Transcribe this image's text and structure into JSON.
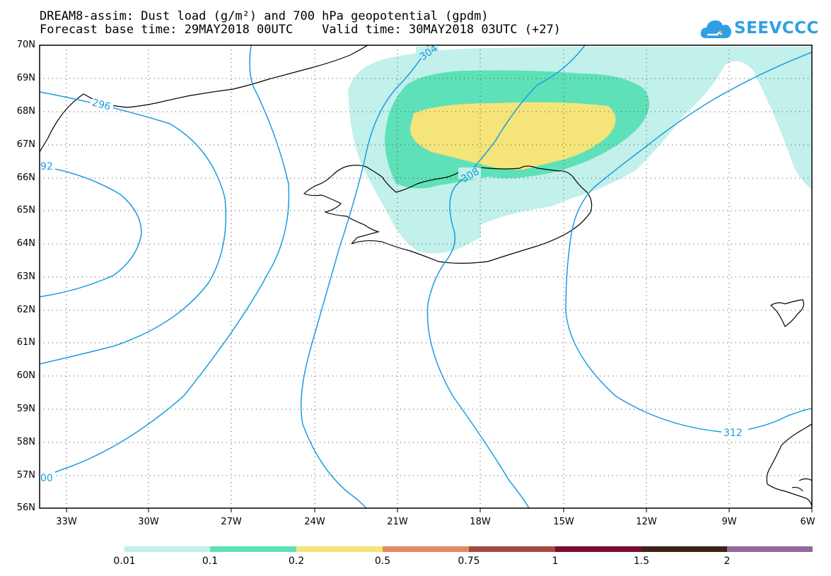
{
  "title_line1": "DREAM8-assim: Dust load (g/m²) and 700 hPa geopotential (gpdm)",
  "title_line2": "Forecast base time: 29MAY2018 00UTC    Valid time: 30MAY2018 03UTC (+27)",
  "logo_text": "SEEVCCC",
  "latitudes": [
    "70N",
    "69N",
    "68N",
    "67N",
    "66N",
    "65N",
    "64N",
    "63N",
    "62N",
    "61N",
    "60N",
    "59N",
    "58N",
    "57N",
    "56N"
  ],
  "longitudes": [
    "33W",
    "30W",
    "27W",
    "24W",
    "21W",
    "18W",
    "15W",
    "12W",
    "9W",
    "6W"
  ],
  "contour_labels": [
    "304",
    "308",
    "312",
    "296",
    "92",
    "00"
  ],
  "colorbar": {
    "labels": [
      "0.01",
      "0.1",
      "0.2",
      "0.5",
      "0.75",
      "1",
      "1.5",
      "2"
    ],
    "colors": [
      "#c2f0ea",
      "#5ee1b8",
      "#f5e47a",
      "#e38a64",
      "#a54a42",
      "#7d0d2f",
      "#3c2317",
      "#93689e"
    ]
  },
  "colors": {
    "contour": "#1a9ce0",
    "dust_low": "#c2f0ea",
    "dust_mid": "#5ee1b8",
    "dust_high": "#f5e47a",
    "coast": "#000000",
    "logo": "#2f9fe3"
  }
}
